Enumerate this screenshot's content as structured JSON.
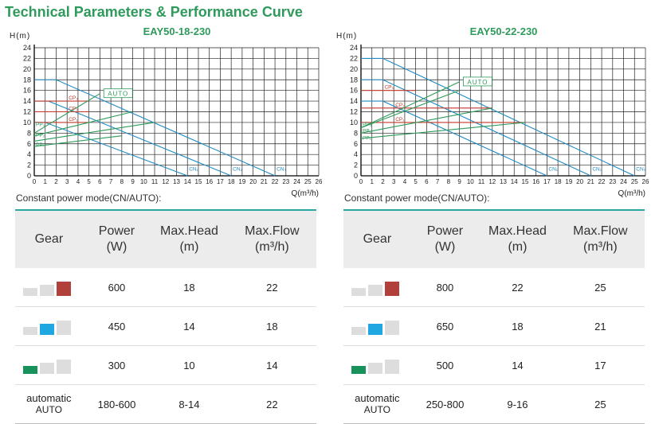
{
  "page_title": "Technical Parameters & Performance Curve",
  "colors": {
    "title": "#2e9a5b",
    "cn_line": "#1f8ac4",
    "cp_line": "#c0392b",
    "pp_line": "#2e9a5b",
    "grid": "#222222",
    "table_accent": "#2aa7a0"
  },
  "mode_label": "Constant power mode(CN/AUTO):",
  "table_headers": {
    "gear": "Gear",
    "power": "Power",
    "power_unit": "(W)",
    "head": "Max.Head",
    "head_unit": "(m)",
    "flow": "Max.Flow",
    "flow_unit": "(m³/h)"
  },
  "gear_icon_colors": {
    "high": "#b1403a",
    "medium": "#1ea7e1",
    "low": "#16925a",
    "inactive": "#dddddd"
  },
  "chart_data": [
    {
      "type": "line",
      "title": "EAY50-18-230",
      "ylabel": "H(m)",
      "xlabel": "Q(m³/h)",
      "xlim": [
        0,
        26
      ],
      "ylim": [
        0,
        24
      ],
      "xticks": [
        0,
        1,
        2,
        3,
        4,
        5,
        6,
        7,
        8,
        9,
        10,
        11,
        12,
        13,
        14,
        15,
        16,
        17,
        18,
        19,
        20,
        21,
        22,
        23,
        24,
        25,
        26
      ],
      "yticks": [
        0,
        2,
        4,
        6,
        8,
        10,
        12,
        14,
        16,
        18,
        20,
        22,
        24
      ],
      "grid": true,
      "series": [
        {
          "name": "CN₁",
          "color": "#1f8ac4",
          "points": [
            [
              0,
              10
            ],
            [
              1,
              10
            ],
            [
              14,
              0
            ]
          ]
        },
        {
          "name": "CN₂",
          "color": "#1f8ac4",
          "points": [
            [
              0,
              14
            ],
            [
              1.3,
              14
            ],
            [
              18,
              0
            ]
          ]
        },
        {
          "name": "CN₃",
          "color": "#1f8ac4",
          "points": [
            [
              0,
              18
            ],
            [
              2,
              18
            ],
            [
              22,
              0
            ]
          ]
        },
        {
          "name": "CP₁",
          "color": "#c0392b",
          "points": [
            [
              0,
              10
            ],
            [
              5,
              10
            ]
          ]
        },
        {
          "name": "CP₂",
          "color": "#c0392b",
          "points": [
            [
              0,
              12
            ],
            [
              5,
              12
            ]
          ]
        },
        {
          "name": "CP₃",
          "color": "#c0392b",
          "points": [
            [
              0,
              14
            ],
            [
              5,
              14
            ]
          ]
        },
        {
          "name": "PP₁",
          "color": "#2e9a5b",
          "points": [
            [
              0,
              5.5
            ],
            [
              8,
              7.5
            ]
          ]
        },
        {
          "name": "PP₂",
          "color": "#2e9a5b",
          "points": [
            [
              0,
              6.5
            ],
            [
              11,
              10
            ]
          ]
        },
        {
          "name": "PP₃",
          "color": "#2e9a5b",
          "points": [
            [
              0,
              7.5
            ],
            [
              9,
              12
            ]
          ]
        },
        {
          "name": "AUTO",
          "color": "#2e9a5b",
          "points": [
            [
              0,
              8
            ],
            [
              6,
              15.4
            ]
          ]
        }
      ],
      "annotations": [
        {
          "text": "AUTO",
          "color": "#2e9a5b",
          "x": 6.5,
          "y": 15.4
        },
        {
          "text": "CP₃",
          "color": "#c0392b",
          "x": 3,
          "y": 14
        },
        {
          "text": "CP₂",
          "color": "#c0392b",
          "x": 3,
          "y": 12
        },
        {
          "text": "CP₁",
          "color": "#c0392b",
          "x": 3,
          "y": 10
        },
        {
          "text": "PP₃",
          "color": "#2e9a5b",
          "x": 0,
          "y": 9
        },
        {
          "text": "PP₂",
          "color": "#2e9a5b",
          "x": 0,
          "y": 7
        },
        {
          "text": "PP₁",
          "color": "#2e9a5b",
          "x": 0,
          "y": 5.2
        },
        {
          "text": "CN₁",
          "color": "#1f8ac4",
          "x": 14,
          "y": 0.7
        },
        {
          "text": "CN₂",
          "color": "#1f8ac4",
          "x": 18,
          "y": 0.7
        },
        {
          "text": "CN₃",
          "color": "#1f8ac4",
          "x": 22,
          "y": 0.7
        }
      ]
    },
    {
      "type": "line",
      "title": "EAY50-22-230",
      "ylabel": "H(m)",
      "xlabel": "Q(m³/h)",
      "xlim": [
        0,
        26
      ],
      "ylim": [
        0,
        24
      ],
      "xticks": [
        0,
        1,
        2,
        3,
        4,
        5,
        6,
        7,
        8,
        9,
        10,
        11,
        12,
        13,
        14,
        15,
        16,
        17,
        18,
        19,
        20,
        21,
        22,
        23,
        24,
        25,
        26
      ],
      "yticks": [
        0,
        2,
        4,
        6,
        8,
        10,
        12,
        14,
        16,
        18,
        20,
        22,
        24
      ],
      "grid": true,
      "series": [
        {
          "name": "CN₁",
          "color": "#1f8ac4",
          "points": [
            [
              0,
              14
            ],
            [
              2,
              14
            ],
            [
              17,
              0
            ]
          ]
        },
        {
          "name": "CN₂",
          "color": "#1f8ac4",
          "points": [
            [
              0,
              18
            ],
            [
              2,
              18
            ],
            [
              21,
              0
            ]
          ]
        },
        {
          "name": "CN₃",
          "color": "#1f8ac4",
          "points": [
            [
              0,
              22
            ],
            [
              2,
              22
            ],
            [
              25,
              0
            ]
          ]
        },
        {
          "name": "CP₁",
          "color": "#c0392b",
          "points": [
            [
              0,
              10
            ],
            [
              15,
              10
            ]
          ]
        },
        {
          "name": "CP₂",
          "color": "#c0392b",
          "points": [
            [
              0,
              12.7
            ],
            [
              12,
              12.7
            ]
          ]
        },
        {
          "name": "CP₃",
          "color": "#c0392b",
          "points": [
            [
              0,
              16
            ],
            [
              5,
              16
            ]
          ]
        },
        {
          "name": "PP₁",
          "color": "#2e9a5b",
          "points": [
            [
              0,
              7
            ],
            [
              15,
              10
            ]
          ]
        },
        {
          "name": "PP₂",
          "color": "#2e9a5b",
          "points": [
            [
              0,
              8
            ],
            [
              12,
              12.7
            ]
          ]
        },
        {
          "name": "PP₃",
          "color": "#2e9a5b",
          "points": [
            [
              0,
              9
            ],
            [
              9,
              16
            ]
          ]
        },
        {
          "name": "AUTO",
          "color": "#2e9a5b",
          "points": [
            [
              0,
              9
            ],
            [
              9,
              17.6
            ]
          ]
        }
      ],
      "annotations": [
        {
          "text": "AUTO",
          "color": "#2e9a5b",
          "x": 9.5,
          "y": 17.6
        },
        {
          "text": "CP₃",
          "color": "#c0392b",
          "x": 2,
          "y": 16
        },
        {
          "text": "CP₂",
          "color": "#c0392b",
          "x": 3,
          "y": 12.7
        },
        {
          "text": "CP₁",
          "color": "#c0392b",
          "x": 3,
          "y": 10
        },
        {
          "text": "PP₃",
          "color": "#2e9a5b",
          "x": 0,
          "y": 9
        },
        {
          "text": "PP₂",
          "color": "#2e9a5b",
          "x": 0,
          "y": 7.8
        },
        {
          "text": "PP₁",
          "color": "#2e9a5b",
          "x": 0,
          "y": 6.5
        },
        {
          "text": "CN₁",
          "color": "#1f8ac4",
          "x": 17,
          "y": 0.7
        },
        {
          "text": "CN₂",
          "color": "#1f8ac4",
          "x": 21,
          "y": 0.7
        },
        {
          "text": "CN₃",
          "color": "#1f8ac4",
          "x": 25,
          "y": 0.7
        }
      ]
    }
  ],
  "tables": [
    {
      "rows": [
        {
          "gear_level": "high",
          "power": "600",
          "head": "18",
          "flow": "22"
        },
        {
          "gear_level": "medium",
          "power": "450",
          "head": "14",
          "flow": "18"
        },
        {
          "gear_level": "low",
          "power": "300",
          "head": "10",
          "flow": "14"
        }
      ],
      "auto_row": {
        "label_line1": "automatic",
        "label_line2": "AUTO",
        "power": "180-600",
        "head": "8-14",
        "flow": "22"
      }
    },
    {
      "rows": [
        {
          "gear_level": "high",
          "power": "800",
          "head": "22",
          "flow": "25"
        },
        {
          "gear_level": "medium",
          "power": "650",
          "head": "18",
          "flow": "21"
        },
        {
          "gear_level": "low",
          "power": "500",
          "head": "14",
          "flow": "17"
        }
      ],
      "auto_row": {
        "label_line1": "automatic",
        "label_line2": "AUTO",
        "power": "250-800",
        "head": "9-16",
        "flow": "25"
      }
    }
  ]
}
